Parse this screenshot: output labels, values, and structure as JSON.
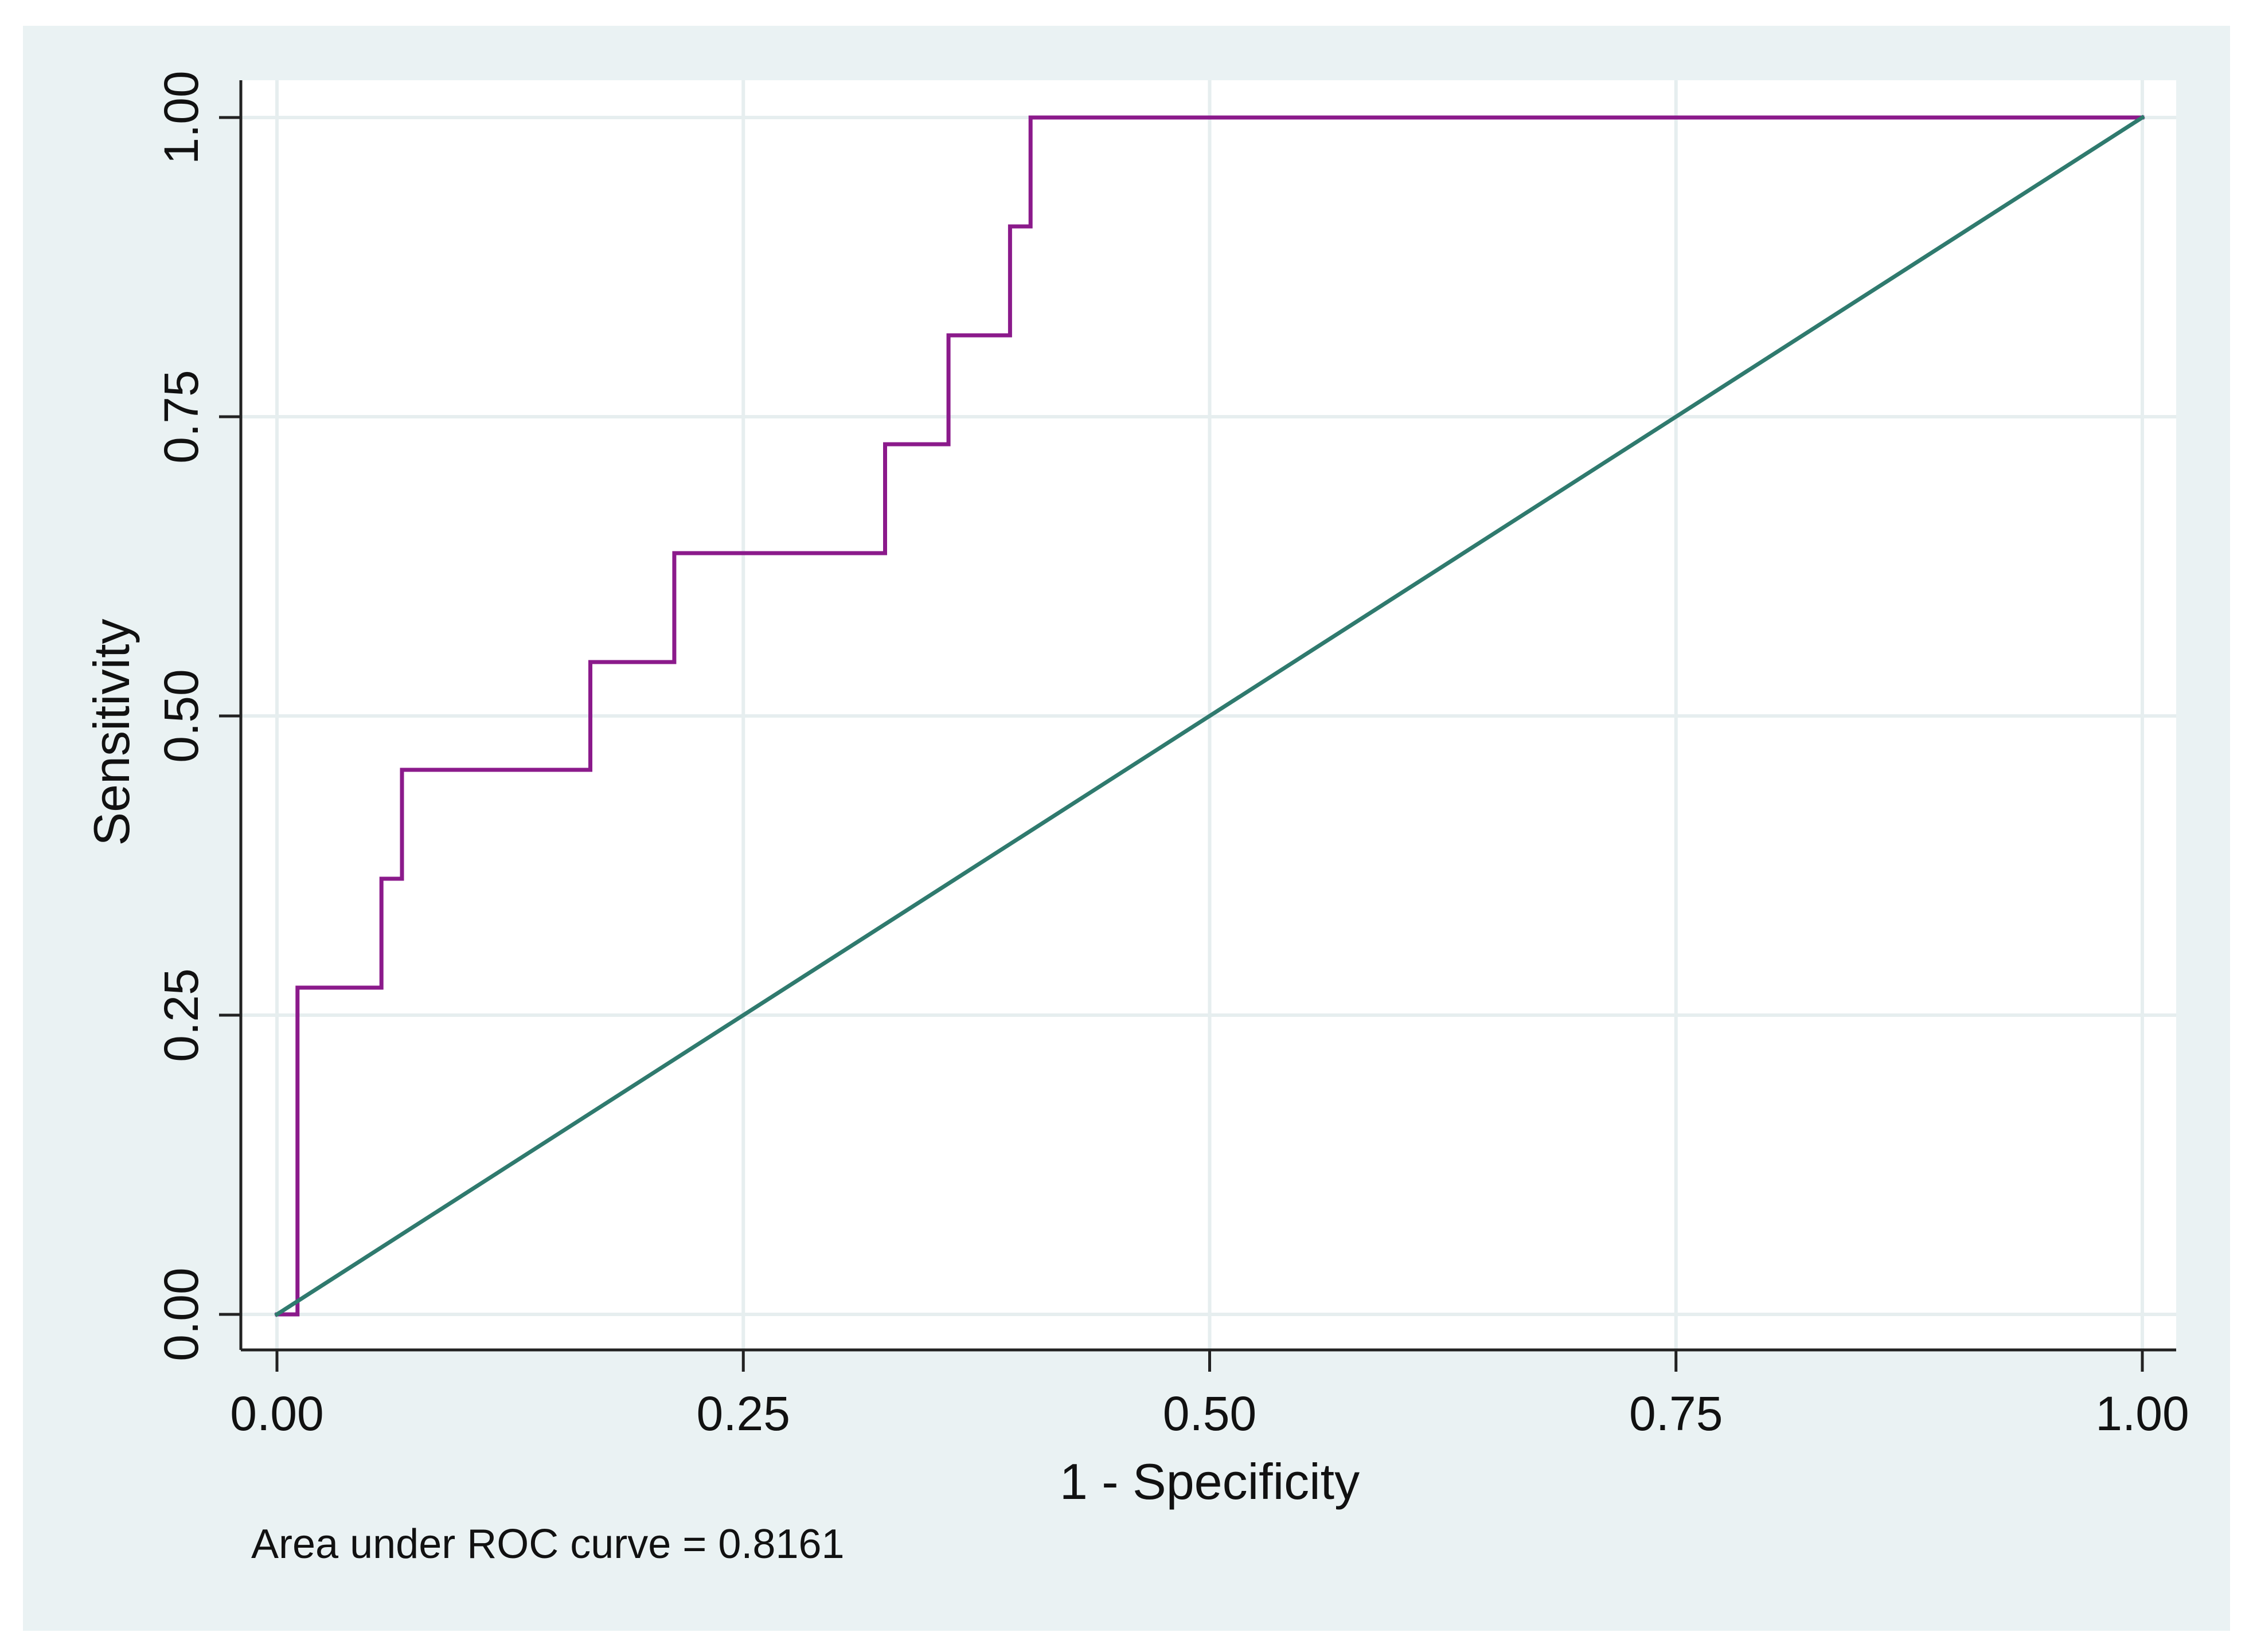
{
  "chart_data": {
    "type": "line",
    "title": "",
    "xlabel": "1 - Specificity",
    "ylabel": "Sensitivity",
    "xlim": [
      0,
      1
    ],
    "ylim": [
      0,
      1
    ],
    "xticks": [
      0.0,
      0.25,
      0.5,
      0.75,
      1.0
    ],
    "yticks": [
      0.0,
      0.25,
      0.5,
      0.75,
      1.0
    ],
    "xtick_labels": [
      "0.00",
      "0.25",
      "0.50",
      "0.75",
      "1.00"
    ],
    "ytick_labels": [
      "0.00",
      "0.25",
      "0.50",
      "0.75",
      "1.00"
    ],
    "grid": true,
    "legend": "none",
    "series": [
      {
        "kind": "step",
        "color": "#8B1A8B",
        "x": [
          0.0,
          0.011,
          0.011,
          0.056,
          0.056,
          0.067,
          0.067,
          0.168,
          0.168,
          0.213,
          0.213,
          0.326,
          0.326,
          0.36,
          0.36,
          0.393,
          0.393,
          0.404,
          0.404,
          1.0
        ],
        "y": [
          0.0,
          0.0,
          0.273,
          0.273,
          0.364,
          0.364,
          0.455,
          0.455,
          0.545,
          0.545,
          0.636,
          0.636,
          0.727,
          0.727,
          0.818,
          0.818,
          0.909,
          0.909,
          1.0,
          1.0
        ]
      },
      {
        "kind": "reference",
        "color": "#2F7A6E",
        "x": [
          0,
          1
        ],
        "y": [
          0,
          1
        ]
      }
    ],
    "annotation": "Area under ROC curve = 0.8161",
    "colors": {
      "outer_background": "#EAF2F3",
      "plot_background": "#FFFFFF",
      "grid": "#E6EEEF",
      "axis": "#222222"
    }
  }
}
